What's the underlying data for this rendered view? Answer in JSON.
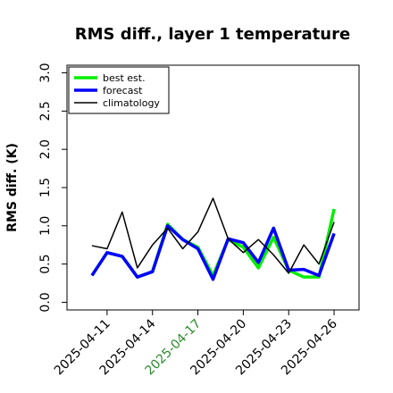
{
  "chart_data": {
    "type": "line",
    "title": "RMS diff., layer 1 temperature",
    "y_label": "RMS diff. (K)",
    "x": [
      "2025-04-10",
      "2025-04-11",
      "2025-04-12",
      "2025-04-13",
      "2025-04-14",
      "2025-04-15",
      "2025-04-16",
      "2025-04-17",
      "2025-04-18",
      "2025-04-19",
      "2025-04-20",
      "2025-04-21",
      "2025-04-22",
      "2025-04-23",
      "2025-04-24",
      "2025-04-25",
      "2025-04-26"
    ],
    "xticks": [
      "2025-04-11",
      "2025-04-14",
      "2025-04-17",
      "2025-04-20",
      "2025-04-23",
      "2025-04-26"
    ],
    "highlight_tick": "2025-04-17",
    "highlight_color": "#2e8b2e",
    "series": [
      {
        "name": "best est.",
        "color": "#00ee00",
        "width": 3.5,
        "values": [
          0.35,
          0.65,
          0.6,
          0.33,
          0.4,
          1.02,
          0.82,
          0.72,
          0.35,
          0.82,
          0.72,
          0.45,
          0.85,
          0.42,
          0.33,
          0.33,
          1.22
        ]
      },
      {
        "name": "forecast",
        "color": "#0000ff",
        "width": 3.5,
        "values": [
          0.35,
          0.65,
          0.6,
          0.33,
          0.4,
          1.0,
          0.82,
          0.7,
          0.3,
          0.83,
          0.78,
          0.52,
          0.97,
          0.42,
          0.43,
          0.35,
          0.9
        ]
      },
      {
        "name": "climatology",
        "color": "#000000",
        "width": 1.5,
        "values": [
          0.74,
          0.7,
          1.18,
          0.45,
          0.75,
          0.97,
          0.7,
          0.92,
          1.36,
          0.83,
          0.65,
          0.82,
          0.62,
          0.38,
          0.75,
          0.5,
          1.05
        ]
      }
    ],
    "ylim": [
      -0.1,
      3.1
    ],
    "yticks": [
      {
        "value": 0,
        "label": "0.0"
      },
      0.5,
      {
        "value": 1,
        "label": "1.0"
      },
      1.5,
      {
        "value": 2,
        "label": "2.0"
      },
      2.5,
      {
        "value": 3,
        "label": "3.0"
      }
    ],
    "legend": "upper left"
  }
}
